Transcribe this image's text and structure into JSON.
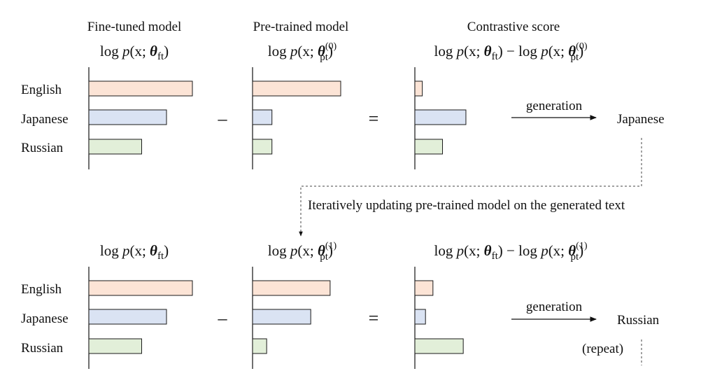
{
  "column_titles": {
    "finetuned": "Fine-tuned model",
    "pretrained": "Pre-trained model",
    "contrastive": "Contrastive score"
  },
  "formulas": {
    "log": "log",
    "p": "p",
    "open_args": "(x; ",
    "theta": "θ",
    "ft": "ft",
    "pt": "pt",
    "close_paren": ")",
    "minus_log": " − log",
    "iter0": "(0)",
    "iter1": "(1)"
  },
  "operators": {
    "minus": "–",
    "equals": "="
  },
  "languages": [
    "English",
    "Japanese",
    "Russian"
  ],
  "arrow_label": "generation",
  "iterate_label": "Iteratively updating pre-trained model on the generated text",
  "repeat_label": "(repeat)",
  "colors": {
    "English": {
      "fill": "#fce4d6",
      "stroke": "#1a1a1a"
    },
    "Japanese": {
      "fill": "#dae3f3",
      "stroke": "#1a1a1a"
    },
    "Russian": {
      "fill": "#e2efd9",
      "stroke": "#1a1a1a"
    }
  },
  "rows": [
    {
      "output": "Japanese",
      "charts": [
        {
          "values": {
            "English": 1.0,
            "Japanese": 0.75,
            "Russian": 0.51
          }
        },
        {
          "values": {
            "English": 1.0,
            "Japanese": 0.22,
            "Russian": 0.22
          }
        },
        {
          "values": {
            "English": 0.14,
            "Japanese": 0.96,
            "Russian": 0.52
          }
        }
      ]
    },
    {
      "output": "Russian",
      "charts": [
        {
          "values": {
            "English": 1.0,
            "Japanese": 0.75,
            "Russian": 0.51
          }
        },
        {
          "values": {
            "English": 0.88,
            "Japanese": 0.66,
            "Russian": 0.16
          }
        },
        {
          "values": {
            "English": 0.34,
            "Japanese": 0.2,
            "Russian": 0.91
          }
        }
      ]
    }
  ]
}
